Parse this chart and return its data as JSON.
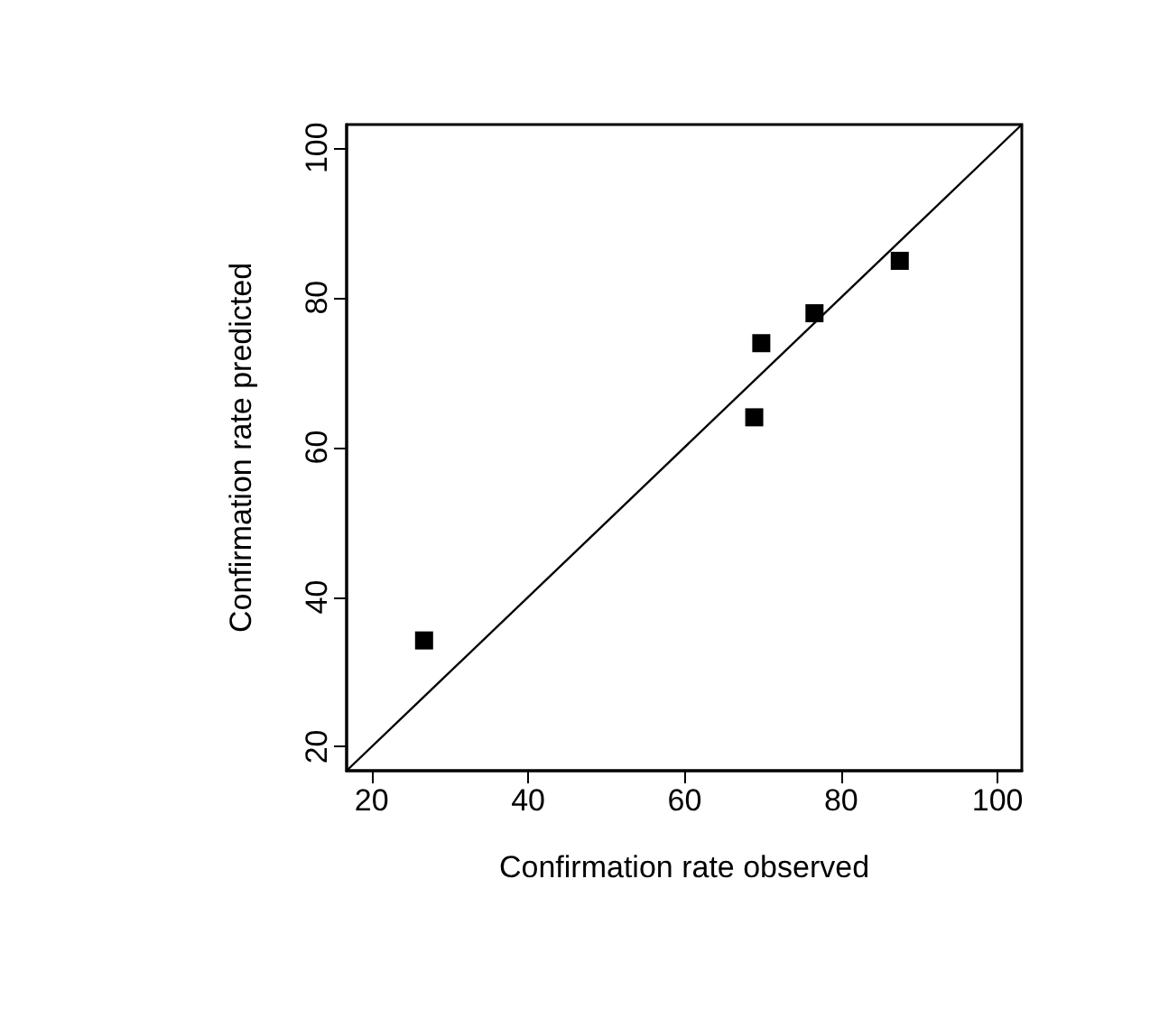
{
  "chart_data": {
    "type": "scatter",
    "xlabel": "Confirmation rate observed",
    "ylabel": "Confirmation rate predicted",
    "xlim": [
      16.8,
      103.1
    ],
    "ylim": [
      16.8,
      103.1
    ],
    "xticks": [
      20,
      40,
      60,
      80,
      100
    ],
    "yticks": [
      20,
      40,
      60,
      80,
      100
    ],
    "grid": false,
    "marker": "square",
    "series": [
      {
        "color": "#000000",
        "x": [
          26.7,
          68.9,
          69.8,
          76.6,
          87.5
        ],
        "values": [
          34.2,
          64.0,
          73.9,
          77.9,
          84.9
        ]
      },
      {
        "type": "line",
        "color": "#000000",
        "marker": "none",
        "x": [
          16.8,
          103.1
        ],
        "values": [
          16.8,
          103.1
        ]
      }
    ]
  }
}
